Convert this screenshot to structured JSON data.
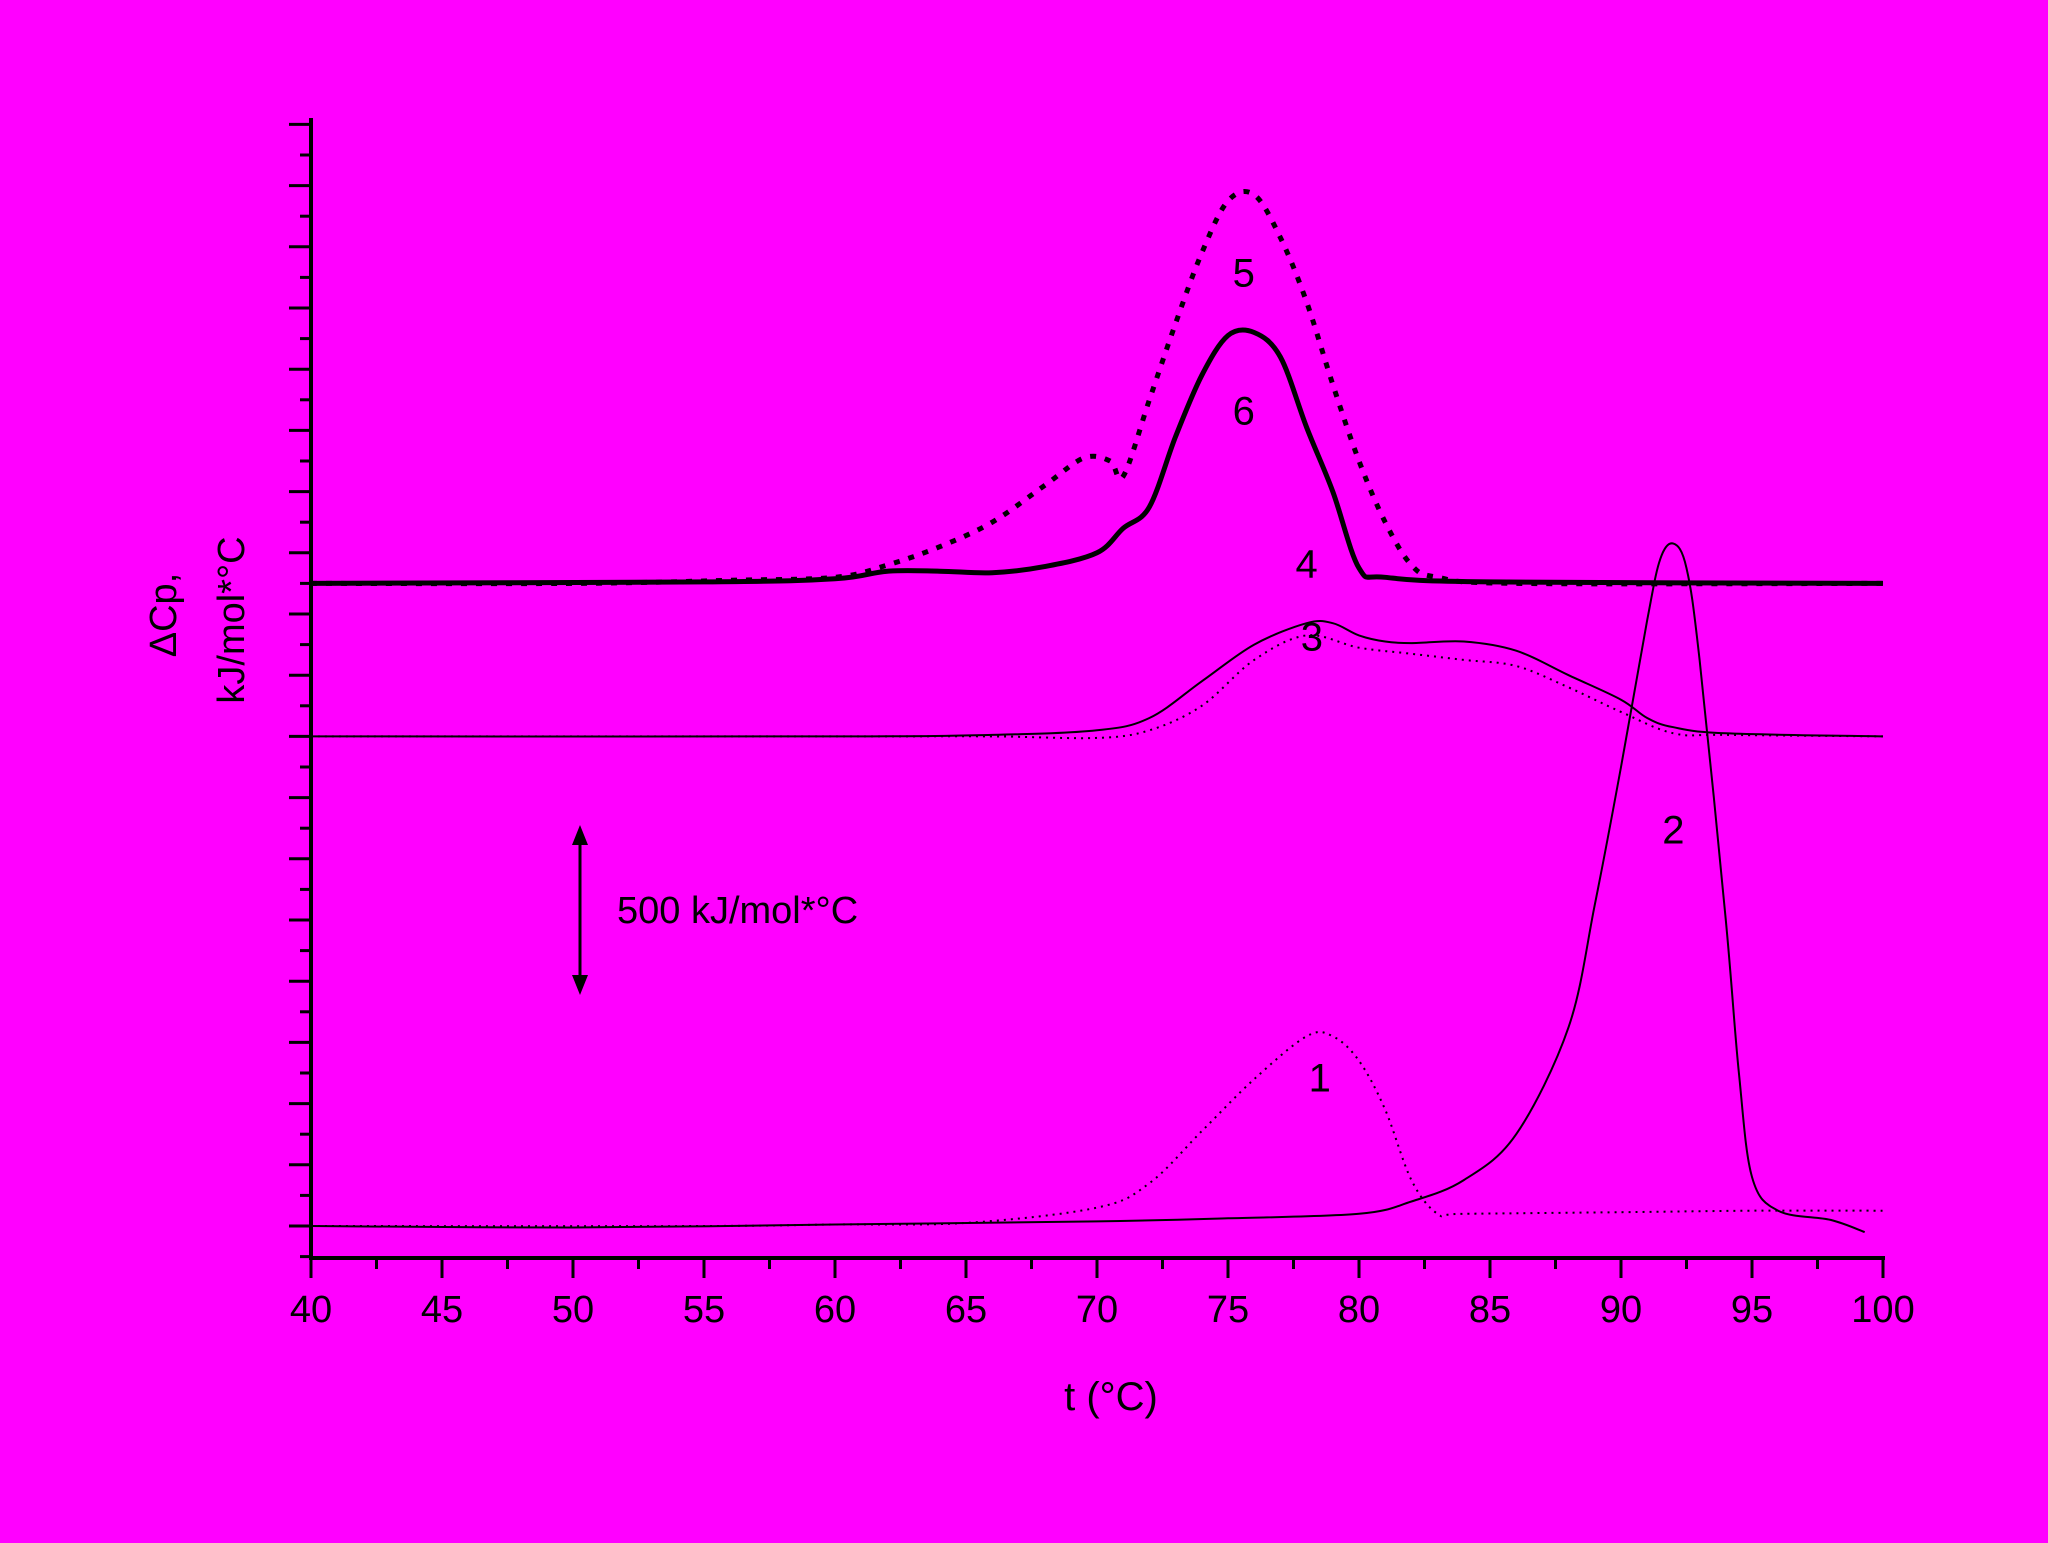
{
  "colors": {
    "background": "#ff00ff",
    "ink": "#000000"
  },
  "chart_data": {
    "type": "line",
    "xlabel": "t (°C)",
    "ylabel_line1": "ΔCp,",
    "ylabel_line2": "kJ/mol*°C",
    "xlim": [
      40,
      100
    ],
    "xticks": [
      "40",
      "45",
      "50",
      "55",
      "60",
      "65",
      "70",
      "75",
      "80",
      "85",
      "90",
      "95",
      "100"
    ],
    "y_tick_labels_shown": false,
    "grid": false,
    "legend": "none",
    "scale_bar": {
      "label": "500 kJ/mol*°C",
      "value": 500
    },
    "series": [
      {
        "label": "1",
        "style": "dotted",
        "baseline_offset": 0,
        "points": [
          [
            40,
            0
          ],
          [
            55,
            0
          ],
          [
            60,
            5
          ],
          [
            65,
            10
          ],
          [
            70,
            60
          ],
          [
            72,
            140
          ],
          [
            74,
            310
          ],
          [
            76,
            480
          ],
          [
            78,
            620
          ],
          [
            79,
            620
          ],
          [
            80,
            540
          ],
          [
            81,
            380
          ],
          [
            82,
            150
          ],
          [
            83,
            40
          ],
          [
            84,
            40
          ],
          [
            90,
            45
          ],
          [
            95,
            50
          ],
          [
            100,
            50
          ]
        ]
      },
      {
        "label": "2",
        "style": "solid",
        "baseline_offset": 0,
        "points": [
          [
            40,
            0
          ],
          [
            50,
            -5
          ],
          [
            60,
            5
          ],
          [
            70,
            15
          ],
          [
            75,
            25
          ],
          [
            80,
            40
          ],
          [
            82,
            80
          ],
          [
            84,
            150
          ],
          [
            86,
            300
          ],
          [
            88,
            650
          ],
          [
            89,
            1050
          ],
          [
            90,
            1500
          ],
          [
            91,
            1980
          ],
          [
            91.5,
            2180
          ],
          [
            92,
            2230
          ],
          [
            92.5,
            2150
          ],
          [
            93,
            1850
          ],
          [
            94,
            1000
          ],
          [
            94.5,
            500
          ],
          [
            95,
            160
          ],
          [
            96,
            50
          ],
          [
            98,
            20
          ],
          [
            99.3,
            -20
          ]
        ]
      },
      {
        "label": "3",
        "style": "dotted",
        "baseline_offset": 1600,
        "points": [
          [
            40,
            0
          ],
          [
            60,
            0
          ],
          [
            66,
            0
          ],
          [
            70,
            -5
          ],
          [
            72,
            20
          ],
          [
            74,
            100
          ],
          [
            76,
            250
          ],
          [
            78,
            330
          ],
          [
            80,
            290
          ],
          [
            82,
            270
          ],
          [
            84,
            250
          ],
          [
            86,
            230
          ],
          [
            88,
            160
          ],
          [
            90,
            80
          ],
          [
            92,
            10
          ],
          [
            94,
            5
          ],
          [
            100,
            0
          ]
        ]
      },
      {
        "label": "4",
        "style": "solid",
        "baseline_offset": 1600,
        "points": [
          [
            40,
            0
          ],
          [
            60,
            0
          ],
          [
            66,
            5
          ],
          [
            70,
            20
          ],
          [
            72,
            60
          ],
          [
            74,
            180
          ],
          [
            76,
            300
          ],
          [
            78,
            370
          ],
          [
            79,
            370
          ],
          [
            80,
            330
          ],
          [
            81,
            310
          ],
          [
            82,
            305
          ],
          [
            84,
            310
          ],
          [
            86,
            280
          ],
          [
            88,
            200
          ],
          [
            90,
            120
          ],
          [
            91,
            60
          ],
          [
            92,
            30
          ],
          [
            94,
            10
          ],
          [
            100,
            0
          ]
        ]
      },
      {
        "label": "5",
        "style": "dotted-bold",
        "baseline_offset": 2100,
        "points": [
          [
            40,
            0
          ],
          [
            50,
            0
          ],
          [
            56,
            10
          ],
          [
            60,
            20
          ],
          [
            62,
            60
          ],
          [
            64,
            120
          ],
          [
            66,
            200
          ],
          [
            68,
            320
          ],
          [
            69.5,
            410
          ],
          [
            70.5,
            400
          ],
          [
            71,
            350
          ],
          [
            72,
            600
          ],
          [
            73,
            850
          ],
          [
            74,
            1080
          ],
          [
            75,
            1250
          ],
          [
            76,
            1270
          ],
          [
            77,
            1130
          ],
          [
            78,
            920
          ],
          [
            79,
            650
          ],
          [
            80,
            400
          ],
          [
            81,
            200
          ],
          [
            82,
            60
          ],
          [
            83,
            20
          ],
          [
            86,
            0
          ],
          [
            100,
            0
          ]
        ]
      },
      {
        "label": "6",
        "style": "solid-bold",
        "baseline_offset": 2100,
        "points": [
          [
            40,
            0
          ],
          [
            55,
            5
          ],
          [
            60,
            15
          ],
          [
            62,
            40
          ],
          [
            64,
            40
          ],
          [
            66,
            35
          ],
          [
            68,
            55
          ],
          [
            70,
            100
          ],
          [
            71,
            180
          ],
          [
            72,
            250
          ],
          [
            73,
            480
          ],
          [
            74,
            680
          ],
          [
            75,
            810
          ],
          [
            76,
            820
          ],
          [
            77,
            740
          ],
          [
            78,
            510
          ],
          [
            79,
            300
          ],
          [
            80,
            50
          ],
          [
            81,
            20
          ],
          [
            85,
            5
          ],
          [
            100,
            0
          ]
        ]
      }
    ],
    "curve_labels": [
      {
        "text": "1",
        "x": 78.5,
        "y": 440
      },
      {
        "text": "2",
        "x": 92.0,
        "y": 1250
      },
      {
        "text": "3",
        "x": 78.2,
        "y": 1880
      },
      {
        "text": "4",
        "x": 78.0,
        "y": 2120
      },
      {
        "text": "5",
        "x": 75.6,
        "y": 3070
      },
      {
        "text": "6",
        "x": 75.6,
        "y": 2620
      }
    ]
  }
}
